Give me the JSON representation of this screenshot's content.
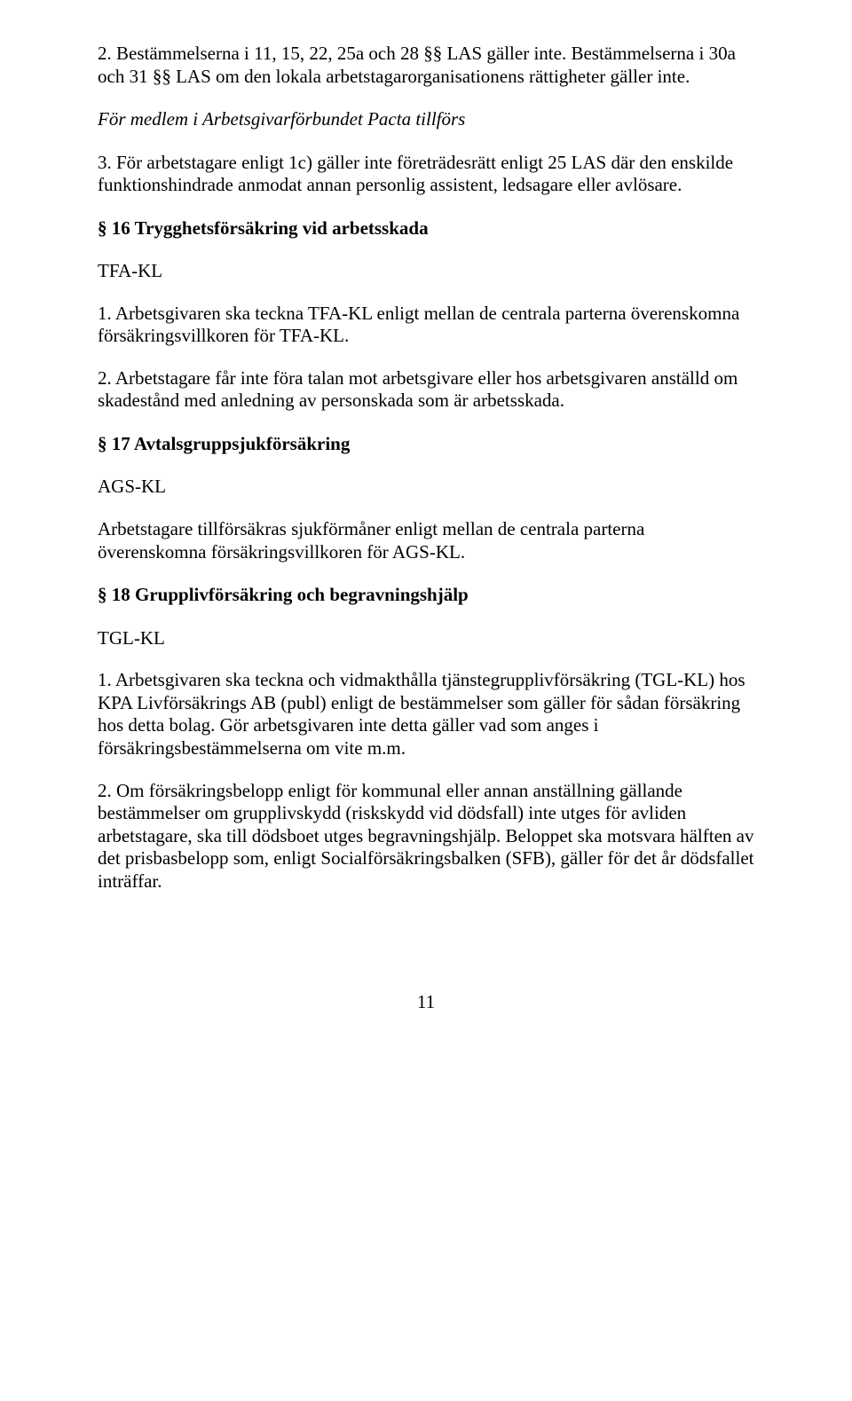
{
  "p1": "2.   Bestämmelserna i 11, 15, 22, 25a och 28 §§ LAS gäller inte. Bestämmelserna i 30a och 31 §§ LAS om den lokala arbetstagarorganisationens rättigheter gäller inte.",
  "sub1": "För medlem i Arbetsgivarförbundet Pacta tillförs",
  "p2": "3.   För arbetstagare enligt 1c) gäller inte företrädesrätt enligt 25 LAS där den enskilde funktionshindrade anmodat annan personlig assistent, ledsagare eller avlösare.",
  "h16": "§ 16   Trygghetsförsäkring vid arbetsskada",
  "tfa": "TFA-KL",
  "p3": "1.   Arbetsgivaren ska teckna TFA-KL enligt mellan de centrala parterna överenskomna försäkringsvillkoren för TFA-KL.",
  "p4": "2.   Arbetstagare får inte föra talan mot arbetsgivare eller hos arbetsgivaren anställd om skadestånd med anledning av personskada som är arbetsskada.",
  "h17": "§ 17   Avtalsgruppsjukförsäkring",
  "ags": "AGS-KL",
  "p5": "Arbetstagare tillförsäkras sjukförmåner enligt mellan de centrala parterna överenskomna försäkringsvillkoren för AGS-KL.",
  "h18": "§ 18   Grupplivförsäkring och begravningshjälp",
  "tgl": "TGL-KL",
  "p6": "1.   Arbetsgivaren ska teckna och vidmakthålla tjänstegrupplivförsäkring (TGL-KL) hos KPA Livförsäkrings AB (publ) enligt de bestämmelser som gäller för sådan försäkring hos detta bolag. Gör arbetsgivaren inte detta gäller vad som anges i försäkringsbestämmelserna om vite m.m.",
  "p7": "2.   Om försäkringsbelopp enligt för kommunal eller annan anställning gällande bestämmelser om grupplivskydd (riskskydd vid dödsfall) inte utges för avliden arbetstagare, ska till dödsboet utges begravningshjälp. Beloppet ska motsvara hälften av det prisbasbelopp som, enligt Socialförsäkringsbalken (SFB), gäller för det år dödsfallet inträffar.",
  "pagenum": "11"
}
